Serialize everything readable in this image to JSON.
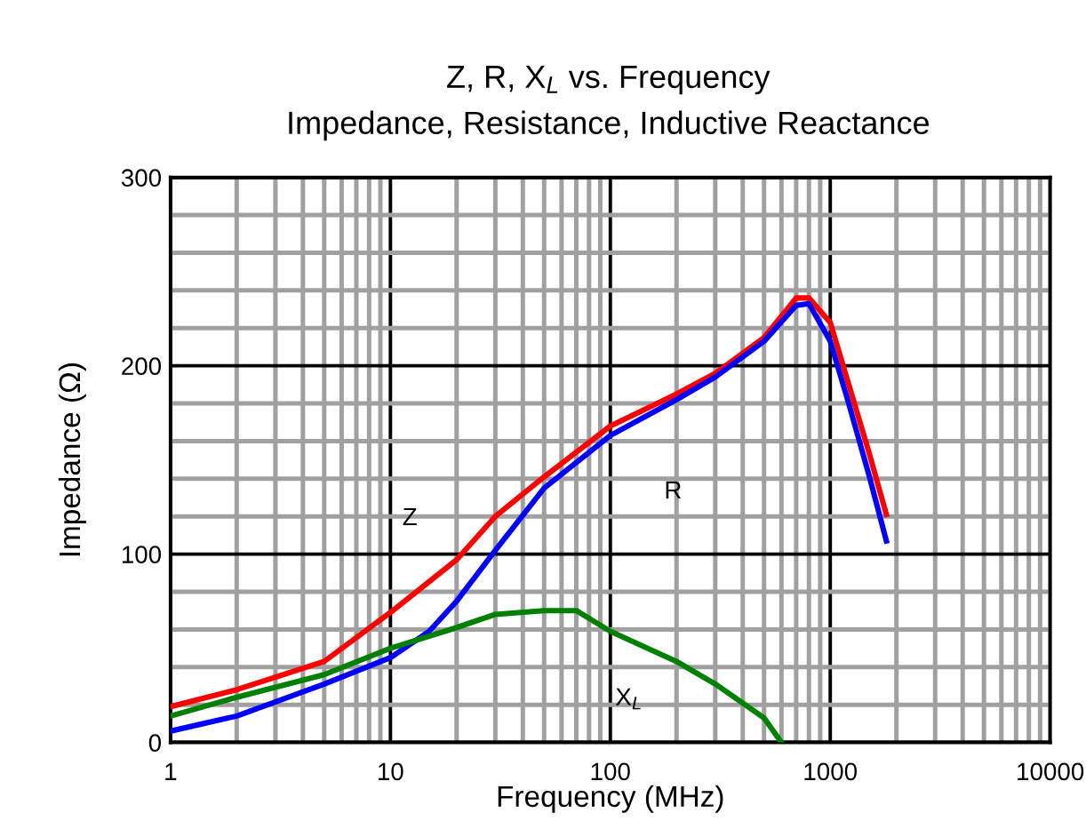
{
  "chart_data": {
    "type": "line",
    "title": "Z, R, X$_{L}$ vs. Frequency",
    "subtitle": "Impedance, Resistance, Inductive Reactance",
    "xlabel": "Frequency (MHz)",
    "ylabel": "Impedance (Ω)",
    "log": "x",
    "xlim": [
      1,
      10000
    ],
    "ylim": [
      0,
      300
    ],
    "xticks": [
      1,
      {
        "value": 2,
        "label": null
      },
      {
        "value": 3,
        "label": null
      },
      {
        "value": 4,
        "label": null
      },
      {
        "value": 5,
        "label": null
      },
      {
        "value": 6,
        "label": null
      },
      {
        "value": 7,
        "label": null
      },
      {
        "value": 8,
        "label": null
      },
      {
        "value": 9,
        "label": null
      },
      10,
      {
        "value": 20,
        "label": null
      },
      {
        "value": 30,
        "label": null
      },
      {
        "value": 40,
        "label": null
      },
      {
        "value": 50,
        "label": null
      },
      {
        "value": 60,
        "label": null
      },
      {
        "value": 70,
        "label": null
      },
      {
        "value": 80,
        "label": null
      },
      {
        "value": 90,
        "label": null
      },
      100,
      {
        "value": 200,
        "label": null
      },
      {
        "value": 300,
        "label": null
      },
      {
        "value": 400,
        "label": null
      },
      {
        "value": 500,
        "label": null
      },
      {
        "value": 600,
        "label": null
      },
      {
        "value": 700,
        "label": null
      },
      {
        "value": 800,
        "label": null
      },
      {
        "value": 900,
        "label": null
      },
      1000,
      {
        "value": 2000,
        "label": null
      },
      {
        "value": 3000,
        "label": null
      },
      {
        "value": 4000,
        "label": null
      },
      {
        "value": 5000,
        "label": null
      },
      {
        "value": 6000,
        "label": null
      },
      {
        "value": 7000,
        "label": null
      },
      {
        "value": 8000,
        "label": null
      },
      {
        "value": 9000,
        "label": null
      },
      10000
    ],
    "yticks": [
      0,
      {
        "value": 20,
        "label": null
      },
      {
        "value": 40,
        "label": null
      },
      {
        "value": 60,
        "label": null
      },
      {
        "value": 80,
        "label": null
      },
      100,
      {
        "value": 120,
        "label": null
      },
      {
        "value": 140,
        "label": null
      },
      {
        "value": 160,
        "label": null
      },
      {
        "value": 180,
        "label": null
      },
      200,
      {
        "value": 220,
        "label": null
      },
      {
        "value": 240,
        "label": null
      },
      {
        "value": 260,
        "label": null
      },
      {
        "value": 280,
        "label": null
      },
      300
    ],
    "grid": true,
    "legend": false,
    "marker": "none",
    "line_style": "solid",
    "series": [
      {
        "name": "Z",
        "color": "#ff0000",
        "x": [
          1,
          2,
          5,
          10,
          20,
          30,
          50,
          100,
          200,
          300,
          500,
          700,
          800,
          1000,
          1200,
          1500,
          1800
        ],
        "values": [
          19,
          28,
          43,
          69,
          97,
          120,
          141,
          168,
          185,
          196,
          215,
          236,
          236,
          223,
          192,
          154,
          121
        ]
      },
      {
        "name": "R",
        "color": "#0000ff",
        "x": [
          1,
          2,
          5,
          10,
          15,
          20,
          30,
          50,
          100,
          200,
          300,
          500,
          700,
          800,
          1000,
          1200,
          1500,
          1800
        ],
        "values": [
          6,
          14,
          31,
          45,
          59,
          75,
          102,
          135,
          163,
          182,
          194,
          213,
          232,
          233,
          213,
          182,
          142,
          107
        ]
      },
      {
        "name": "X$_{L}$",
        "color": "#008000",
        "x": [
          1,
          2,
          5,
          10,
          20,
          30,
          50,
          70,
          100,
          200,
          300,
          500,
          600
        ],
        "values": [
          14,
          24,
          36,
          50,
          61,
          68,
          70,
          70,
          59,
          43,
          31,
          13,
          0
        ]
      }
    ]
  }
}
